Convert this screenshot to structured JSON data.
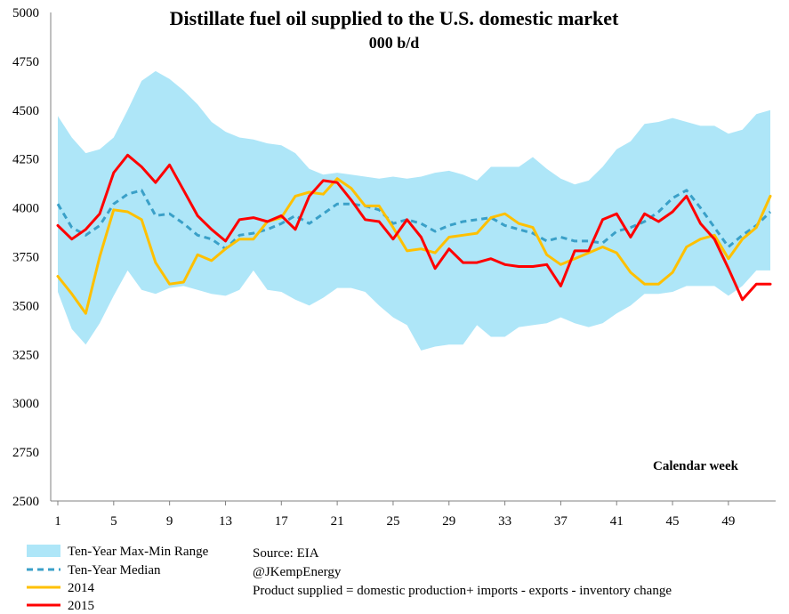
{
  "chart_data": {
    "type": "line",
    "title": "Distillate fuel oil supplied to the U.S. domestic market",
    "subtitle": "000 b/d",
    "xlabel": "Calendar week",
    "ylabel": "",
    "ylim": [
      2500,
      5000
    ],
    "xlim": [
      1,
      52
    ],
    "y_ticks": [
      2500,
      2750,
      3000,
      3250,
      3500,
      3750,
      4000,
      4250,
      4500,
      4750,
      5000
    ],
    "x_ticks": [
      1,
      5,
      9,
      13,
      17,
      21,
      25,
      29,
      33,
      37,
      41,
      45,
      49
    ],
    "grid": false,
    "legend_position": "bottom-left",
    "x": [
      1,
      2,
      3,
      4,
      5,
      6,
      7,
      8,
      9,
      10,
      11,
      12,
      13,
      14,
      15,
      16,
      17,
      18,
      19,
      20,
      21,
      22,
      23,
      24,
      25,
      26,
      27,
      28,
      29,
      30,
      31,
      32,
      33,
      34,
      35,
      36,
      37,
      38,
      39,
      40,
      41,
      42,
      43,
      44,
      45,
      46,
      47,
      48,
      49,
      50,
      51,
      52
    ],
    "range": {
      "name": "Ten-Year Max-Min Range",
      "color": "#aee6f8",
      "max": [
        4470,
        4360,
        4280,
        4300,
        4360,
        4500,
        4650,
        4700,
        4660,
        4600,
        4530,
        4440,
        4390,
        4360,
        4350,
        4330,
        4320,
        4280,
        4200,
        4170,
        4180,
        4170,
        4160,
        4150,
        4160,
        4150,
        4160,
        4180,
        4190,
        4170,
        4140,
        4210,
        4210,
        4210,
        4260,
        4200,
        4150,
        4120,
        4140,
        4210,
        4300,
        4340,
        4430,
        4440,
        4460,
        4440,
        4420,
        4420,
        4380,
        4400,
        4480,
        4500
      ],
      "min": [
        3570,
        3380,
        3300,
        3410,
        3550,
        3680,
        3580,
        3560,
        3590,
        3600,
        3580,
        3560,
        3550,
        3580,
        3680,
        3580,
        3570,
        3530,
        3500,
        3540,
        3590,
        3590,
        3570,
        3500,
        3440,
        3400,
        3270,
        3290,
        3300,
        3300,
        3400,
        3340,
        3340,
        3390,
        3400,
        3410,
        3440,
        3410,
        3390,
        3410,
        3460,
        3500,
        3560,
        3560,
        3570,
        3600,
        3600,
        3600,
        3550,
        3600,
        3680,
        3680
      ]
    },
    "series": [
      {
        "name": "Ten-Year Median",
        "color": "#3aa0c8",
        "style": "dashed",
        "values": [
          4020,
          3900,
          3860,
          3910,
          4020,
          4070,
          4090,
          3960,
          3970,
          3920,
          3860,
          3840,
          3790,
          3860,
          3870,
          3890,
          3920,
          3960,
          3920,
          3970,
          4020,
          4020,
          4010,
          3990,
          3920,
          3940,
          3920,
          3880,
          3910,
          3930,
          3940,
          3950,
          3910,
          3890,
          3870,
          3830,
          3850,
          3830,
          3830,
          3820,
          3880,
          3900,
          3930,
          3980,
          4050,
          4090,
          4000,
          3900,
          3800,
          3860,
          3910,
          3980
        ]
      },
      {
        "name": "2014",
        "color": "#ffc000",
        "style": "solid",
        "values": [
          3650,
          3560,
          3460,
          3750,
          3990,
          3980,
          3940,
          3720,
          3610,
          3620,
          3760,
          3730,
          3790,
          3840,
          3840,
          3930,
          3950,
          4060,
          4080,
          4070,
          4150,
          4100,
          4010,
          4010,
          3900,
          3780,
          3790,
          3770,
          3850,
          3860,
          3870,
          3950,
          3970,
          3920,
          3900,
          3760,
          3710,
          3740,
          3770,
          3800,
          3770,
          3670,
          3610,
          3610,
          3670,
          3800,
          3840,
          3860,
          3740,
          3840,
          3900,
          4060
        ]
      },
      {
        "name": "2015",
        "color": "#ff0000",
        "style": "solid",
        "values": [
          3910,
          3840,
          3890,
          3970,
          4180,
          4270,
          4210,
          4130,
          4220,
          4090,
          3960,
          3890,
          3830,
          3940,
          3950,
          3930,
          3960,
          3890,
          4060,
          4140,
          4130,
          4040,
          3940,
          3930,
          3840,
          3940,
          3850,
          3690,
          3790,
          3720,
          3720,
          3740,
          3710,
          3700,
          3700,
          3710,
          3600,
          3780,
          3780,
          3940,
          3970,
          3850,
          3970,
          3930,
          3980,
          4060,
          3920,
          3840,
          3690,
          3530,
          3610,
          3610
        ]
      }
    ]
  },
  "notes": {
    "source": "Source: EIA",
    "handle": "@JKempEnergy",
    "definition": "Product supplied = domestic production+ imports - exports - inventory change"
  }
}
